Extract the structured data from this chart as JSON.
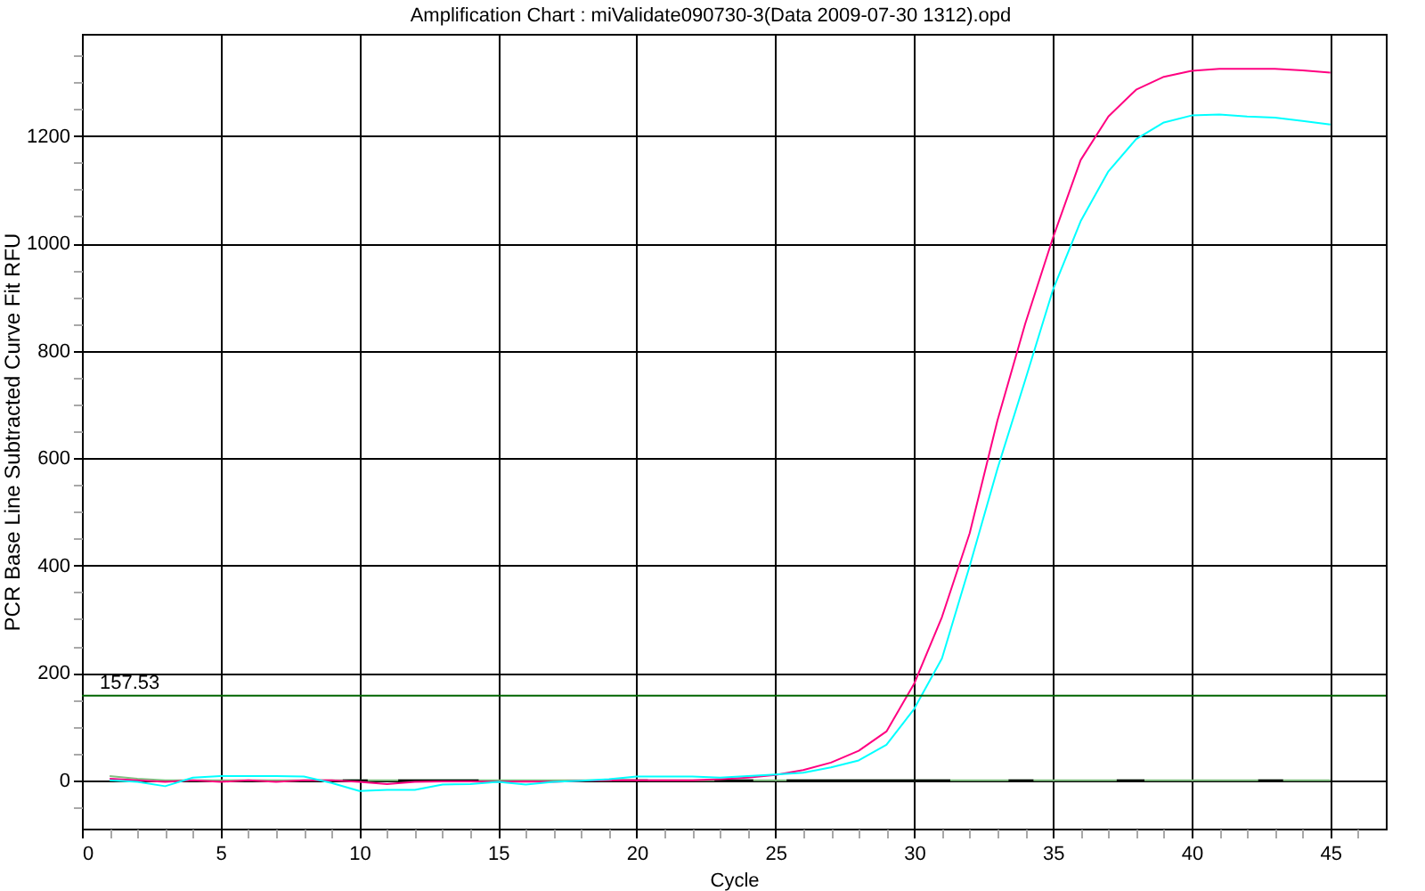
{
  "chart_data": {
    "type": "line",
    "title": "Amplification Chart : miValidate090730-3(Data 2009-07-30 1312).opd",
    "xlabel": "Cycle",
    "ylabel": "PCR Base Line Subtracted Curve Fit RFU",
    "x": [
      1,
      2,
      3,
      4,
      5,
      6,
      7,
      8,
      9,
      10,
      11,
      12,
      13,
      14,
      15,
      16,
      17,
      18,
      19,
      20,
      21,
      22,
      23,
      24,
      25,
      26,
      27,
      28,
      29,
      30,
      31,
      32,
      33,
      34,
      35,
      36,
      37,
      38,
      39,
      40,
      41,
      42,
      43,
      44,
      45
    ],
    "series": [
      {
        "color": "#80c080",
        "values": [
          8,
          3,
          0,
          0,
          0,
          0,
          0,
          0,
          0,
          0,
          0,
          0,
          0,
          0,
          0,
          0,
          0,
          0,
          0,
          0,
          0,
          0,
          0,
          0,
          0,
          0,
          0,
          0,
          0,
          0,
          0,
          0,
          0,
          0,
          0,
          0,
          0,
          0,
          0,
          0,
          0,
          0,
          0,
          0,
          0
        ]
      },
      {
        "color": "#000000",
        "x": [
          9.4,
          10.3,
          10.85,
          11.4,
          14.3,
          16.7,
          19.1,
          20.4,
          21.6,
          22.8,
          24.2,
          24.8,
          25.4,
          31.3,
          32.35,
          33.4,
          34.3,
          35.8,
          37.3,
          38.3,
          40.35,
          42.4,
          43.3
        ],
        "values": [
          0,
          0,
          null,
          0,
          0,
          null,
          0,
          0,
          null,
          0,
          0,
          null,
          0,
          0,
          null,
          0,
          0,
          null,
          0,
          0,
          null,
          0,
          0
        ]
      },
      {
        "color": "#ff0080",
        "values": [
          3,
          0,
          -3,
          0,
          -3,
          0,
          -3,
          0,
          0,
          -3,
          -7,
          -3,
          -2,
          -2,
          -3,
          -2,
          -3,
          -1,
          0,
          0,
          0,
          0,
          2,
          5,
          10,
          19,
          33,
          55,
          91,
          180,
          304,
          460,
          670,
          850,
          1010,
          1155,
          1236,
          1286,
          1310,
          1321,
          1325,
          1325,
          1325,
          1322,
          1318
        ]
      },
      {
        "color": "#00ffff",
        "values": [
          0,
          -3,
          -11,
          5,
          8,
          8,
          8,
          7,
          -5,
          -20,
          -18,
          -18,
          -8,
          -7,
          -3,
          -8,
          -3,
          -1,
          2,
          7,
          7,
          7,
          5,
          8,
          11,
          14,
          24,
          37,
          66,
          133,
          227,
          399,
          580,
          745,
          913,
          1041,
          1134,
          1194,
          1225,
          1238,
          1240,
          1236,
          1234,
          1228,
          1221
        ]
      }
    ],
    "xlim": [
      0,
      47
    ],
    "xticks": [
      0,
      {
        "value": 1,
        "label": null
      },
      {
        "value": 2,
        "label": null
      },
      {
        "value": 3,
        "label": null
      },
      {
        "value": 4,
        "label": null
      },
      5,
      {
        "value": 6,
        "label": null
      },
      {
        "value": 7,
        "label": null
      },
      {
        "value": 8,
        "label": null
      },
      {
        "value": 9,
        "label": null
      },
      10,
      {
        "value": 11,
        "label": null
      },
      {
        "value": 12,
        "label": null
      },
      {
        "value": 13,
        "label": null
      },
      {
        "value": 14,
        "label": null
      },
      15,
      {
        "value": 16,
        "label": null
      },
      {
        "value": 17,
        "label": null
      },
      {
        "value": 18,
        "label": null
      },
      {
        "value": 19,
        "label": null
      },
      20,
      {
        "value": 21,
        "label": null
      },
      {
        "value": 22,
        "label": null
      },
      {
        "value": 23,
        "label": null
      },
      {
        "value": 24,
        "label": null
      },
      25,
      {
        "value": 26,
        "label": null
      },
      {
        "value": 27,
        "label": null
      },
      {
        "value": 28,
        "label": null
      },
      {
        "value": 29,
        "label": null
      },
      30,
      {
        "value": 31,
        "label": null
      },
      {
        "value": 32,
        "label": null
      },
      {
        "value": 33,
        "label": null
      },
      {
        "value": 34,
        "label": null
      },
      35,
      {
        "value": 36,
        "label": null
      },
      {
        "value": 37,
        "label": null
      },
      {
        "value": 38,
        "label": null
      },
      {
        "value": 39,
        "label": null
      },
      40,
      {
        "value": 41,
        "label": null
      },
      {
        "value": 42,
        "label": null
      },
      {
        "value": 43,
        "label": null
      },
      {
        "value": 44,
        "label": null
      },
      45,
      {
        "value": 46,
        "label": null
      }
    ],
    "ylim": [
      -90,
      1390
    ],
    "yticks": [
      {
        "value": -50,
        "label": null
      },
      0,
      {
        "value": 50,
        "label": null
      },
      {
        "value": 100,
        "label": null
      },
      {
        "value": 150,
        "label": null
      },
      200,
      {
        "value": 250,
        "label": null
      },
      {
        "value": 300,
        "label": null
      },
      {
        "value": 350,
        "label": null
      },
      400,
      {
        "value": 450,
        "label": null
      },
      {
        "value": 500,
        "label": null
      },
      {
        "value": 550,
        "label": null
      },
      600,
      {
        "value": 650,
        "label": null
      },
      {
        "value": 700,
        "label": null
      },
      {
        "value": 750,
        "label": null
      },
      800,
      {
        "value": 850,
        "label": null
      },
      {
        "value": 900,
        "label": null
      },
      {
        "value": 950,
        "label": null
      },
      1000,
      {
        "value": 1050,
        "label": null
      },
      {
        "value": 1100,
        "label": null
      },
      {
        "value": 1150,
        "label": null
      },
      1200,
      {
        "value": 1250,
        "label": null
      },
      {
        "value": 1300,
        "label": null
      },
      {
        "value": 1350,
        "label": null
      }
    ],
    "grid": true,
    "ref_lines": [
      {
        "axis": "y",
        "value": 157.53,
        "label": "157.53",
        "color": "#006400"
      }
    ]
  }
}
